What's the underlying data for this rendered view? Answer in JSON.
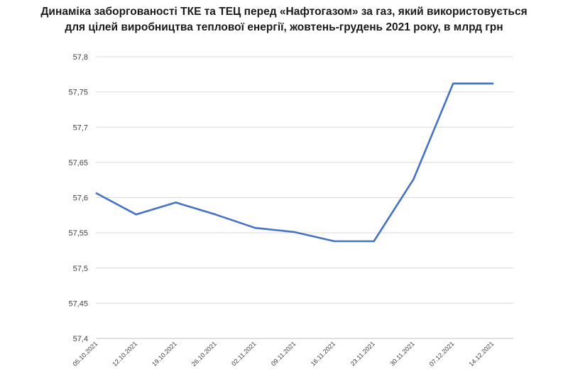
{
  "title": {
    "line1": "Динаміка заборгованості ТКЕ та ТЕЦ перед «Нафтогазом» за газ, який використовується",
    "line2": "для цілей виробництва теплової енергії, жовтень-грудень 2021 року, в млрд грн"
  },
  "colors": {
    "line": "#4472C4",
    "grid": "#d9d9d9",
    "axis": "#bfbfbf"
  },
  "chart_data": {
    "type": "line",
    "title": "Динаміка заборгованості ТКЕ та ТЕЦ перед «Нафтогазом» за газ, який використовується для цілей виробництва теплової енергії, жовтень-грудень 2021 року, в млрд грн",
    "categories": [
      "05.10.2021",
      "12.10.2021",
      "19.10.2021",
      "26.10.2021",
      "02.11.2021",
      "09.11.2021",
      "16.11.2021",
      "23.11.2021",
      "30.11.2021",
      "07.12.2021",
      "14.12.2021"
    ],
    "values": [
      57.606,
      57.576,
      57.593,
      57.576,
      57.557,
      57.551,
      57.538,
      57.538,
      57.626,
      57.762,
      57.762
    ],
    "ylim": [
      57.4,
      57.8
    ],
    "yticks": [
      "57,4",
      "57,45",
      "57,5",
      "57,55",
      "57,6",
      "57,65",
      "57,7",
      "57,75",
      "57,8"
    ],
    "grid": true,
    "legend": "none"
  }
}
